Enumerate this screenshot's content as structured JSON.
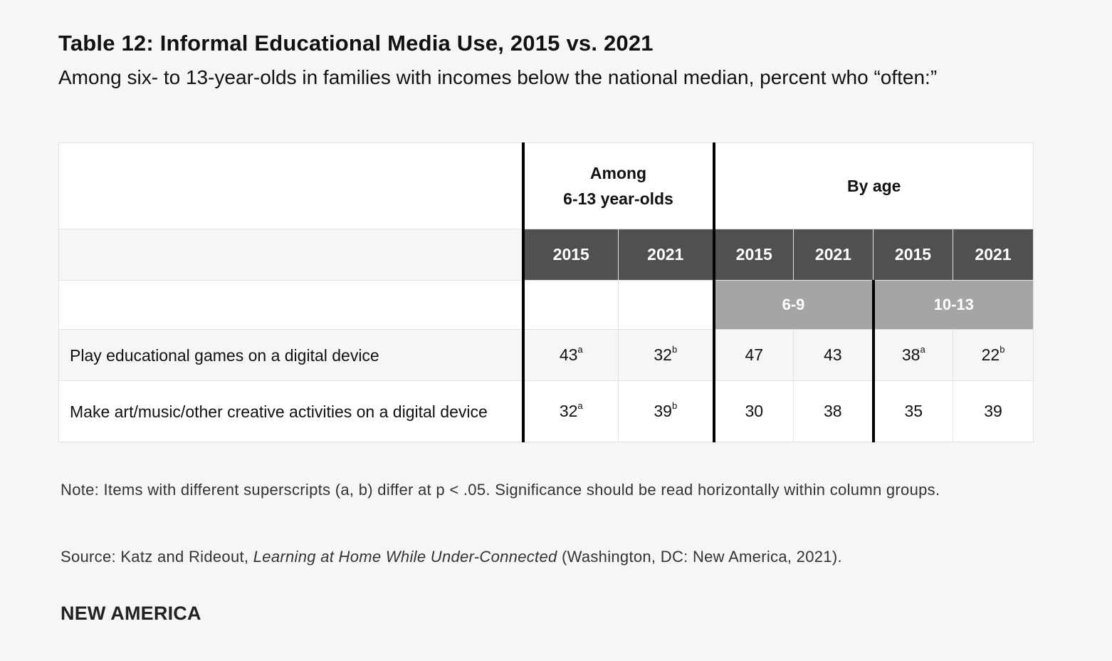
{
  "title": "Table 12: Informal Educational Media Use, 2015 vs. 2021",
  "subtitle": "Among six- to 13-year-olds in families with incomes below the national median, percent who “often:”",
  "table": {
    "group_among_line1": "Among",
    "group_among_line2": "6-13 year-olds",
    "group_by_age": "By age",
    "years": [
      "2015",
      "2021",
      "2015",
      "2021",
      "2015",
      "2021"
    ],
    "age_groups": [
      "6-9",
      "10-13"
    ],
    "rows": [
      {
        "label": "Play educational games on a digital device",
        "cells": [
          {
            "value": "43",
            "sup": "a"
          },
          {
            "value": "32",
            "sup": "b"
          },
          {
            "value": "47",
            "sup": ""
          },
          {
            "value": "43",
            "sup": ""
          },
          {
            "value": "38",
            "sup": "a"
          },
          {
            "value": "22",
            "sup": "b"
          }
        ]
      },
      {
        "label": "Make art/music/other creative activities on a digital device",
        "cells": [
          {
            "value": "32",
            "sup": "a"
          },
          {
            "value": "39",
            "sup": "b"
          },
          {
            "value": "30",
            "sup": ""
          },
          {
            "value": "38",
            "sup": ""
          },
          {
            "value": "35",
            "sup": ""
          },
          {
            "value": "39",
            "sup": ""
          }
        ]
      }
    ]
  },
  "note": "Note: Items with different superscripts (a, b) differ at p < .05. Significance should be read horizontally within column groups.",
  "source": {
    "prefix": "Source: Katz and Rideout, ",
    "italic": "Learning at Home While Under-Connected",
    "suffix": " (Washington, DC: New America, 2021)."
  },
  "brand": "NEW AMERICA"
}
